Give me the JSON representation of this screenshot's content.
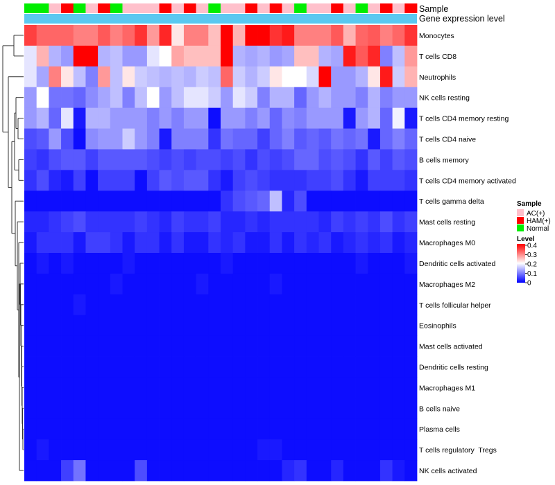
{
  "chart_data": {
    "type": "heatmap",
    "title": "",
    "annotation_labels": {
      "sample": "Sample",
      "gene_level": "Gene expression level"
    },
    "columns": 32,
    "sample_groups": [
      "Normal",
      "Normal",
      "AC(+)",
      "HAM(+)",
      "Normal",
      "AC(+)",
      "HAM(+)",
      "Normal",
      "AC(+)",
      "AC(+)",
      "AC(+)",
      "HAM(+)",
      "AC(+)",
      "HAM(+)",
      "AC(+)",
      "Normal",
      "AC(+)",
      "AC(+)",
      "HAM(+)",
      "AC(+)",
      "HAM(+)",
      "AC(+)",
      "Normal",
      "AC(+)",
      "AC(+)",
      "HAM(+)",
      "AC(+)",
      "Normal",
      "AC(+)",
      "HAM(+)",
      "AC(+)",
      "HAM(+)"
    ],
    "rows": [
      {
        "name": "Monocytes",
        "values": [
          0.35,
          0.32,
          0.32,
          0.32,
          0.3,
          0.3,
          0.33,
          0.3,
          0.32,
          0.36,
          0.28,
          0.37,
          0.22,
          0.3,
          0.3,
          0.25,
          0.4,
          0.26,
          0.4,
          0.4,
          0.36,
          0.38,
          0.3,
          0.3,
          0.3,
          0.33,
          0.26,
          0.32,
          0.33,
          0.3,
          0.32,
          0.36
        ]
      },
      {
        "name": "T cells CD8",
        "values": [
          0.18,
          0.26,
          0.14,
          0.12,
          0.4,
          0.4,
          0.14,
          0.15,
          0.12,
          0.12,
          0.18,
          0.2,
          0.27,
          0.25,
          0.25,
          0.25,
          0.4,
          0.14,
          0.13,
          0.14,
          0.12,
          0.13,
          0.25,
          0.25,
          0.14,
          0.13,
          0.38,
          0.33,
          0.37,
          0.1,
          0.15,
          0.28
        ]
      },
      {
        "name": "Neutrophils",
        "values": [
          0.18,
          0.13,
          0.3,
          0.22,
          0.15,
          0.1,
          0.28,
          0.15,
          0.22,
          0.16,
          0.15,
          0.14,
          0.15,
          0.14,
          0.16,
          0.15,
          0.32,
          0.16,
          0.14,
          0.16,
          0.22,
          0.2,
          0.2,
          0.17,
          0.4,
          0.12,
          0.12,
          0.14,
          0.22,
          0.38,
          0.16,
          0.26
        ]
      },
      {
        "name": "NK cells resting",
        "values": [
          0.12,
          0.2,
          0.09,
          0.09,
          0.08,
          0.11,
          0.13,
          0.15,
          0.1,
          0.15,
          0.2,
          0.12,
          0.15,
          0.18,
          0.18,
          0.16,
          0.12,
          0.18,
          0.16,
          0.1,
          0.14,
          0.14,
          0.08,
          0.12,
          0.14,
          0.12,
          0.12,
          0.1,
          0.14,
          0.1,
          0.12,
          0.12
        ]
      },
      {
        "name": "T cells CD4 memory resting",
        "values": [
          0.12,
          0.14,
          0.08,
          0.18,
          0.02,
          0.14,
          0.14,
          0.12,
          0.12,
          0.12,
          0.1,
          0.12,
          0.1,
          0.12,
          0.12,
          0.01,
          0.12,
          0.12,
          0.1,
          0.12,
          0.08,
          0.11,
          0.1,
          0.12,
          0.12,
          0.12,
          0.02,
          0.12,
          0.14,
          0.08,
          0.19,
          0.02
        ]
      },
      {
        "name": "T cells CD4 naive",
        "values": [
          0.06,
          0.07,
          0.12,
          0.06,
          0.01,
          0.11,
          0.12,
          0.12,
          0.16,
          0.12,
          0.1,
          0.02,
          0.1,
          0.1,
          0.1,
          0.04,
          0.09,
          0.08,
          0.08,
          0.05,
          0.08,
          0.1,
          0.07,
          0.08,
          0.07,
          0.09,
          0.08,
          0.09,
          0.02,
          0.08,
          0.1,
          0.08
        ]
      },
      {
        "name": "B cells memory",
        "values": [
          0.05,
          0.04,
          0.06,
          0.07,
          0.07,
          0.05,
          0.07,
          0.07,
          0.07,
          0.07,
          0.06,
          0.05,
          0.06,
          0.05,
          0.06,
          0.06,
          0.05,
          0.06,
          0.04,
          0.06,
          0.05,
          0.06,
          0.08,
          0.08,
          0.06,
          0.07,
          0.06,
          0.04,
          0.07,
          0.05,
          0.07,
          0.06
        ]
      },
      {
        "name": "T cells CD4 memory activated",
        "values": [
          0.04,
          0.06,
          0.03,
          0.02,
          0.05,
          0.01,
          0.05,
          0.05,
          0.05,
          0.01,
          0.05,
          0.07,
          0.06,
          0.07,
          0.07,
          0.04,
          0.02,
          0.05,
          0.06,
          0.05,
          0.04,
          0.04,
          0.04,
          0.05,
          0.05,
          0.06,
          0.04,
          0.02,
          0.05,
          0.05,
          0.05,
          0.04
        ]
      },
      {
        "name": "T cells gamma delta",
        "values": [
          0.01,
          0.01,
          0.01,
          0.01,
          0.01,
          0.01,
          0.01,
          0.01,
          0.01,
          0.01,
          0.01,
          0.01,
          0.01,
          0.01,
          0.01,
          0.01,
          0.04,
          0.06,
          0.07,
          0.08,
          0.15,
          0.03,
          0.06,
          0.01,
          0.01,
          0.01,
          0.01,
          0.01,
          0.01,
          0.01,
          0.01,
          0.01
        ]
      },
      {
        "name": "Mast cells resting",
        "values": [
          0.03,
          0.03,
          0.04,
          0.05,
          0.06,
          0.04,
          0.04,
          0.04,
          0.04,
          0.05,
          0.04,
          0.03,
          0.05,
          0.04,
          0.04,
          0.05,
          0.03,
          0.03,
          0.04,
          0.03,
          0.04,
          0.04,
          0.04,
          0.04,
          0.03,
          0.05,
          0.04,
          0.05,
          0.04,
          0.06,
          0.04,
          0.05
        ]
      },
      {
        "name": "Macrophages M0",
        "values": [
          0.02,
          0.04,
          0.04,
          0.04,
          0.02,
          0.05,
          0.05,
          0.04,
          0.02,
          0.04,
          0.04,
          0.02,
          0.04,
          0.02,
          0.02,
          0.04,
          0.03,
          0.04,
          0.02,
          0.02,
          0.04,
          0.02,
          0.04,
          0.03,
          0.04,
          0.02,
          0.03,
          0.04,
          0.03,
          0.04,
          0.02,
          0.03
        ]
      },
      {
        "name": "Dendritic cells activated",
        "values": [
          0.01,
          0.02,
          0.01,
          0.02,
          0.01,
          0.01,
          0.01,
          0.01,
          0.02,
          0.01,
          0.01,
          0.01,
          0.01,
          0.01,
          0.01,
          0.01,
          0.02,
          0.01,
          0.01,
          0.01,
          0.01,
          0.01,
          0.01,
          0.01,
          0.01,
          0.01,
          0.01,
          0.02,
          0.01,
          0.01,
          0.01,
          0.02
        ]
      },
      {
        "name": "Macrophages M2",
        "values": [
          0.01,
          0.01,
          0.01,
          0.01,
          0.01,
          0.01,
          0.01,
          0.02,
          0.01,
          0.01,
          0.01,
          0.01,
          0.01,
          0.01,
          0.02,
          0.01,
          0.01,
          0.01,
          0.01,
          0.01,
          0.02,
          0.01,
          0.01,
          0.01,
          0.01,
          0.01,
          0.01,
          0.01,
          0.01,
          0.01,
          0.01,
          0.01
        ]
      },
      {
        "name": "T cells follicular helper",
        "values": [
          0.01,
          0.01,
          0.01,
          0.01,
          0.02,
          0.01,
          0.01,
          0.01,
          0.01,
          0.01,
          0.01,
          0.01,
          0.01,
          0.01,
          0.01,
          0.01,
          0.01,
          0.01,
          0.01,
          0.01,
          0.01,
          0.01,
          0.01,
          0.01,
          0.01,
          0.01,
          0.01,
          0.01,
          0.01,
          0.01,
          0.01,
          0.01
        ]
      },
      {
        "name": "Eosinophils",
        "values": [
          0.01,
          0.01,
          0.01,
          0.01,
          0.01,
          0.01,
          0.01,
          0.01,
          0.01,
          0.01,
          0.01,
          0.01,
          0.01,
          0.01,
          0.01,
          0.01,
          0.01,
          0.01,
          0.01,
          0.01,
          0.01,
          0.01,
          0.01,
          0.01,
          0.01,
          0.01,
          0.01,
          0.01,
          0.01,
          0.01,
          0.01,
          0.01
        ]
      },
      {
        "name": "Mast cells activated",
        "values": [
          0.01,
          0.01,
          0.01,
          0.01,
          0.01,
          0.01,
          0.01,
          0.01,
          0.01,
          0.01,
          0.01,
          0.01,
          0.01,
          0.01,
          0.01,
          0.01,
          0.01,
          0.01,
          0.01,
          0.01,
          0.01,
          0.01,
          0.01,
          0.01,
          0.01,
          0.01,
          0.01,
          0.01,
          0.01,
          0.01,
          0.01,
          0.01
        ]
      },
      {
        "name": "Dendritic cells resting",
        "values": [
          0.01,
          0.01,
          0.01,
          0.01,
          0.01,
          0.01,
          0.01,
          0.01,
          0.01,
          0.01,
          0.01,
          0.01,
          0.01,
          0.01,
          0.01,
          0.01,
          0.01,
          0.01,
          0.01,
          0.01,
          0.01,
          0.01,
          0.01,
          0.01,
          0.01,
          0.01,
          0.01,
          0.01,
          0.01,
          0.01,
          0.01,
          0.01
        ]
      },
      {
        "name": "Macrophages M1",
        "values": [
          0.01,
          0.01,
          0.01,
          0.01,
          0.01,
          0.01,
          0.01,
          0.01,
          0.01,
          0.01,
          0.01,
          0.01,
          0.01,
          0.01,
          0.01,
          0.01,
          0.01,
          0.01,
          0.01,
          0.01,
          0.01,
          0.01,
          0.01,
          0.01,
          0.01,
          0.01,
          0.01,
          0.01,
          0.01,
          0.01,
          0.01,
          0.01
        ]
      },
      {
        "name": "B cells naive",
        "values": [
          0.01,
          0.01,
          0.01,
          0.01,
          0.01,
          0.01,
          0.01,
          0.01,
          0.01,
          0.01,
          0.01,
          0.01,
          0.01,
          0.01,
          0.01,
          0.01,
          0.01,
          0.01,
          0.01,
          0.01,
          0.01,
          0.01,
          0.01,
          0.01,
          0.01,
          0.01,
          0.01,
          0.01,
          0.01,
          0.01,
          0.01,
          0.01
        ]
      },
      {
        "name": "Plasma cells",
        "values": [
          0.01,
          0.01,
          0.01,
          0.01,
          0.01,
          0.01,
          0.01,
          0.01,
          0.01,
          0.01,
          0.01,
          0.01,
          0.01,
          0.01,
          0.01,
          0.01,
          0.01,
          0.01,
          0.01,
          0.01,
          0.01,
          0.01,
          0.01,
          0.01,
          0.01,
          0.01,
          0.01,
          0.01,
          0.01,
          0.01,
          0.01,
          0.01
        ]
      },
      {
        "name": "T cells regulatory  Tregs",
        "values": [
          0.01,
          0.02,
          0.01,
          0.01,
          0.01,
          0.01,
          0.01,
          0.01,
          0.01,
          0.01,
          0.01,
          0.01,
          0.01,
          0.01,
          0.01,
          0.01,
          0.01,
          0.01,
          0.01,
          0.02,
          0.02,
          0.01,
          0.01,
          0.01,
          0.01,
          0.01,
          0.01,
          0.01,
          0.01,
          0.01,
          0.01,
          0.01
        ]
      },
      {
        "name": "NK cells activated",
        "values": [
          0.01,
          0.01,
          0.01,
          0.05,
          0.09,
          0.01,
          0.01,
          0.01,
          0.01,
          0.06,
          0.01,
          0.01,
          0.01,
          0.01,
          0.01,
          0.01,
          0.01,
          0.01,
          0.01,
          0.01,
          0.01,
          0.03,
          0.04,
          0.01,
          0.01,
          0.03,
          0.01,
          0.01,
          0.01,
          0.04,
          0.02,
          0.01
        ]
      }
    ],
    "legend_sample": {
      "title": "Sample",
      "entries": [
        {
          "label": "AC(+)",
          "color": "#FFC0CB"
        },
        {
          "label": "HAM(+)",
          "color": "#FF0000"
        },
        {
          "label": "Normal",
          "color": "#00EE00"
        }
      ]
    },
    "legend_level": {
      "title": "Level",
      "ticks": [
        0.4,
        0.3,
        0.2,
        0.1,
        0
      ],
      "range": [
        0,
        0.4
      ]
    },
    "colors": {
      "low": "#0000FF",
      "mid": "#FFFFFF",
      "high": "#FF0000",
      "gene_bar": "#5BC8F0"
    }
  }
}
